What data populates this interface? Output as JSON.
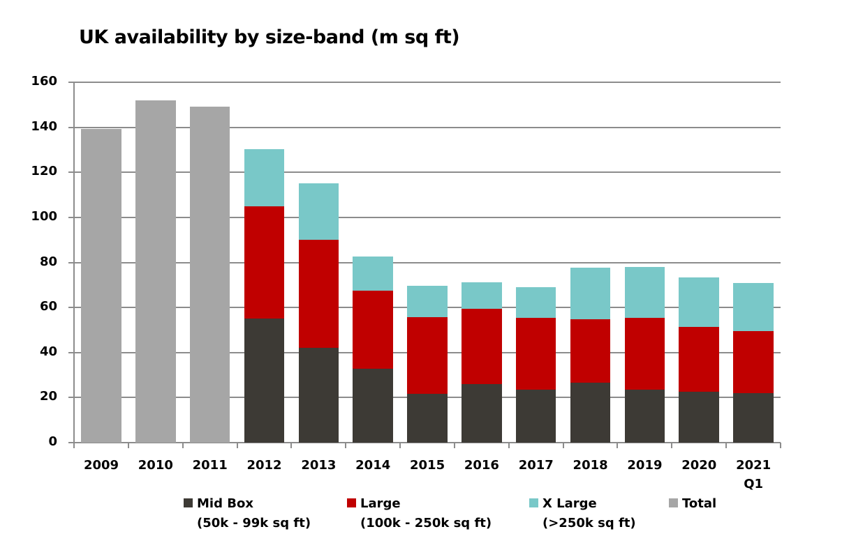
{
  "chart_data": {
    "type": "bar",
    "stacked": true,
    "title": "UK availability by size-band (m sq ft)",
    "xlabel": "",
    "ylabel": "",
    "ylim": [
      0,
      160
    ],
    "yticks": [
      0,
      20,
      40,
      60,
      80,
      100,
      120,
      140,
      160
    ],
    "grid": true,
    "legend_position": "bottom",
    "categories": [
      "2009",
      "2010",
      "2011",
      "2012",
      "2013",
      "2014",
      "2015",
      "2016",
      "2017",
      "2018",
      "2019",
      "2020",
      "2021 Q1"
    ],
    "category_labels": [
      [
        "2009"
      ],
      [
        "2010"
      ],
      [
        "2011"
      ],
      [
        "2012"
      ],
      [
        "2013"
      ],
      [
        "2014"
      ],
      [
        "2015"
      ],
      [
        "2016"
      ],
      [
        "2017"
      ],
      [
        "2018"
      ],
      [
        "2019"
      ],
      [
        "2020"
      ],
      [
        "2021",
        "Q1"
      ]
    ],
    "series": [
      {
        "name": "Mid Box",
        "subtitle": "(50k - 99k sq ft)",
        "color": "#3d3a35",
        "values": [
          null,
          null,
          null,
          55.1,
          42.2,
          32.8,
          21.8,
          26.1,
          23.6,
          26.7,
          23.6,
          22.7,
          22.1
        ]
      },
      {
        "name": "Large",
        "subtitle": "(100k - 250k sq ft)",
        "color": "#c00000",
        "values": [
          null,
          null,
          null,
          49.9,
          48.0,
          34.7,
          34.0,
          33.2,
          31.9,
          28.2,
          31.9,
          28.7,
          27.4
        ]
      },
      {
        "name": "X Large",
        "subtitle": "(>250k sq ft)",
        "color": "#79c8c8",
        "values": [
          null,
          null,
          null,
          25.2,
          25.0,
          15.2,
          13.9,
          12.0,
          13.5,
          22.7,
          22.4,
          21.8,
          21.5
        ]
      },
      {
        "name": "Total",
        "subtitle": "",
        "color": "#a6a6a6",
        "values": [
          139.3,
          151.8,
          149.2,
          null,
          null,
          null,
          null,
          null,
          null,
          null,
          null,
          null,
          null
        ]
      }
    ]
  },
  "legend": {
    "items": [
      {
        "label": "Mid Box",
        "sub": "(50k - 99k sq ft)",
        "color": "#3d3a35"
      },
      {
        "label": "Large",
        "sub": "(100k - 250k sq ft)",
        "color": "#c00000"
      },
      {
        "label": "X Large",
        "sub": "(>250k sq ft)",
        "color": "#79c8c8"
      },
      {
        "label": "Total",
        "sub": "",
        "color": "#a6a6a6"
      }
    ]
  }
}
